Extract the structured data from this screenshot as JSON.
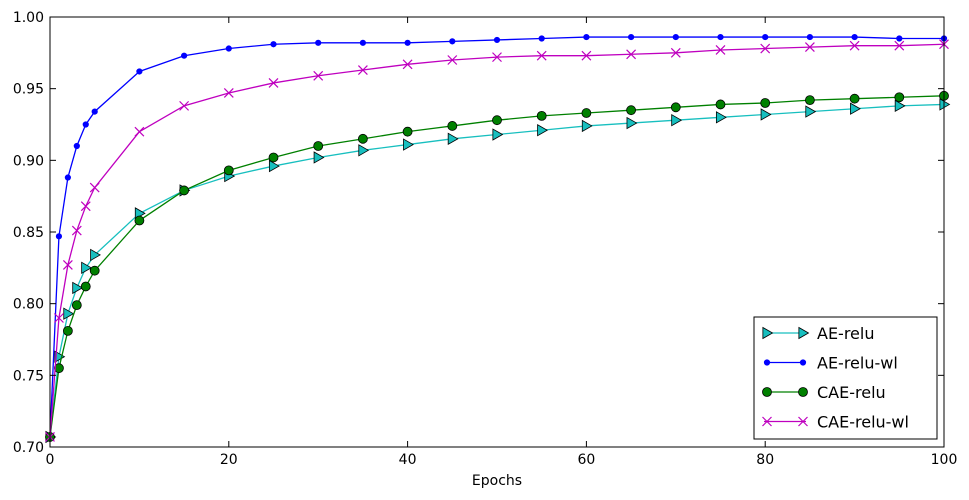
{
  "chart_data": {
    "type": "line",
    "title": "",
    "xlabel": "Epochs",
    "ylabel": "",
    "xlim": [
      0,
      100
    ],
    "ylim": [
      0.7,
      1.0
    ],
    "xticks": [
      0,
      20,
      40,
      60,
      80,
      100
    ],
    "xtick_labels": [
      "0",
      "20",
      "40",
      "60",
      "80",
      "100"
    ],
    "yticks": [
      0.7,
      0.75,
      0.8,
      0.85,
      0.9,
      0.95,
      1.0
    ],
    "ytick_labels": [
      "0.70",
      "0.75",
      "0.80",
      "0.85",
      "0.90",
      "0.95",
      "1.00"
    ],
    "grid": false,
    "legend_position": "lower-right",
    "x": [
      0,
      1,
      2,
      3,
      4,
      5,
      10,
      15,
      20,
      25,
      30,
      35,
      40,
      45,
      50,
      55,
      60,
      65,
      70,
      75,
      80,
      85,
      90,
      95,
      100
    ],
    "series": [
      {
        "name": "AE-relu",
        "color": "#17bfbf",
        "marker": "triangle-right",
        "values": [
          0.707,
          0.763,
          0.793,
          0.811,
          0.825,
          0.834,
          0.863,
          0.879,
          0.889,
          0.896,
          0.902,
          0.907,
          0.911,
          0.915,
          0.918,
          0.921,
          0.924,
          0.926,
          0.928,
          0.93,
          0.932,
          0.934,
          0.936,
          0.938,
          0.939
        ]
      },
      {
        "name": "AE-relu-wl",
        "color": "#0000ff",
        "marker": "dot",
        "values": [
          0.707,
          0.847,
          0.888,
          0.91,
          0.925,
          0.934,
          0.962,
          0.973,
          0.978,
          0.981,
          0.982,
          0.982,
          0.982,
          0.983,
          0.984,
          0.985,
          0.986,
          0.986,
          0.986,
          0.986,
          0.986,
          0.986,
          0.986,
          0.985,
          0.985
        ]
      },
      {
        "name": "CAE-relu",
        "color": "#008000",
        "marker": "circle",
        "values": [
          0.707,
          0.755,
          0.781,
          0.799,
          0.812,
          0.823,
          0.858,
          0.879,
          0.893,
          0.902,
          0.91,
          0.915,
          0.92,
          0.924,
          0.928,
          0.931,
          0.933,
          0.935,
          0.937,
          0.939,
          0.94,
          0.942,
          0.943,
          0.944,
          0.945
        ]
      },
      {
        "name": "CAE-relu-wl",
        "color": "#bf00bf",
        "marker": "x",
        "values": [
          0.707,
          0.79,
          0.827,
          0.851,
          0.868,
          0.881,
          0.92,
          0.938,
          0.947,
          0.954,
          0.959,
          0.963,
          0.967,
          0.97,
          0.972,
          0.973,
          0.973,
          0.974,
          0.975,
          0.977,
          0.978,
          0.979,
          0.98,
          0.98,
          0.981
        ]
      }
    ]
  }
}
